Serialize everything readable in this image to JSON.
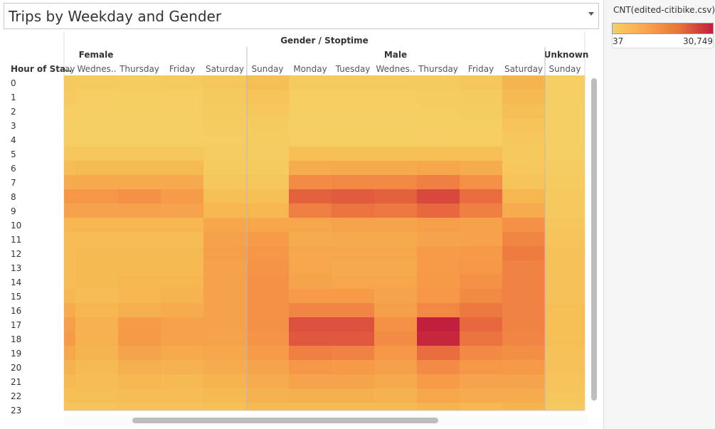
{
  "title": "Trips by Weekday and Gender",
  "legend": {
    "title": "CNT(edited-citibike.csv)",
    "min": "37",
    "max": "30,749"
  },
  "chart_data": {
    "type": "heatmap",
    "column_group_title": "Gender / Stoptime",
    "row_header": "Hour of Sta..",
    "genders": [
      "Female",
      "Male",
      "Unknown"
    ],
    "columns": [
      {
        "gender": "Female",
        "day": "ay"
      },
      {
        "gender": "Female",
        "day": "Wednes.."
      },
      {
        "gender": "Female",
        "day": "Thursday"
      },
      {
        "gender": "Female",
        "day": "Friday"
      },
      {
        "gender": "Female",
        "day": "Saturday"
      },
      {
        "gender": "Male",
        "day": "Sunday"
      },
      {
        "gender": "Male",
        "day": "Monday"
      },
      {
        "gender": "Male",
        "day": "Tuesday"
      },
      {
        "gender": "Male",
        "day": "Wednes.."
      },
      {
        "gender": "Male",
        "day": "Thursday"
      },
      {
        "gender": "Male",
        "day": "Friday"
      },
      {
        "gender": "Male",
        "day": "Saturday"
      },
      {
        "gender": "Unknown",
        "day": "Sunday"
      }
    ],
    "rows": [
      "0",
      "1",
      "2",
      "3",
      "4",
      "5",
      "6",
      "7",
      "8",
      "9",
      "10",
      "11",
      "12",
      "13",
      "14",
      "15",
      "16",
      "17",
      "18",
      "19",
      "20",
      "21",
      "22",
      "23"
    ],
    "color_range": [
      37,
      30749
    ],
    "values": [
      [
        1500,
        1000,
        800,
        1000,
        2000,
        3500,
        1000,
        1000,
        1200,
        1200,
        2000,
        5500,
        600
      ],
      [
        1000,
        600,
        500,
        600,
        1500,
        2500,
        700,
        700,
        700,
        800,
        1200,
        4500,
        400
      ],
      [
        600,
        400,
        400,
        400,
        1200,
        1800,
        400,
        400,
        400,
        500,
        800,
        3500,
        300
      ],
      [
        400,
        300,
        300,
        300,
        800,
        1200,
        300,
        300,
        300,
        300,
        500,
        2500,
        200
      ],
      [
        600,
        400,
        400,
        400,
        600,
        900,
        600,
        500,
        500,
        600,
        700,
        1800,
        200
      ],
      [
        2000,
        2000,
        2000,
        2000,
        800,
        900,
        3500,
        3500,
        3500,
        3500,
        3500,
        1500,
        400
      ],
      [
        4000,
        4500,
        4500,
        4500,
        1200,
        1200,
        7000,
        7500,
        7500,
        8000,
        7000,
        1800,
        800
      ],
      [
        7000,
        7500,
        7500,
        7500,
        2000,
        2000,
        13000,
        13500,
        13500,
        15000,
        12000,
        2500,
        1200
      ],
      [
        11000,
        11000,
        12000,
        10000,
        3500,
        3500,
        20000,
        21000,
        20000,
        24000,
        18000,
        5000,
        1500
      ],
      [
        9000,
        9000,
        9000,
        8500,
        5000,
        5000,
        15000,
        17000,
        16000,
        19000,
        15000,
        7000,
        1500
      ],
      [
        5000,
        5000,
        5000,
        5000,
        8000,
        8000,
        8000,
        8500,
        8500,
        9500,
        9000,
        12000,
        2000
      ],
      [
        4000,
        4000,
        4000,
        4000,
        9000,
        10000,
        7000,
        7500,
        7500,
        8500,
        9000,
        14000,
        2500
      ],
      [
        4000,
        4500,
        4500,
        4500,
        9500,
        11000,
        8000,
        8000,
        8000,
        10000,
        10500,
        15500,
        3000
      ],
      [
        4000,
        4500,
        4500,
        4500,
        9000,
        11500,
        8000,
        7500,
        7500,
        10000,
        11000,
        14500,
        3000
      ],
      [
        4000,
        4500,
        5000,
        5000,
        9000,
        12000,
        8500,
        8000,
        8000,
        10500,
        12000,
        14500,
        3000
      ],
      [
        5000,
        4000,
        5000,
        5500,
        9000,
        12000,
        10000,
        10000,
        8500,
        11000,
        13500,
        14500,
        3000
      ],
      [
        7000,
        5000,
        6500,
        7000,
        9000,
        12000,
        14000,
        14000,
        9500,
        13500,
        16000,
        14500,
        3500
      ],
      [
        9500,
        6000,
        10000,
        9000,
        9000,
        12000,
        22500,
        22500,
        12000,
        30749,
        19000,
        14500,
        3500
      ],
      [
        10000,
        6000,
        10500,
        9000,
        8500,
        11500,
        21500,
        21500,
        13000,
        29500,
        17000,
        14000,
        3500
      ],
      [
        8000,
        5500,
        8500,
        7500,
        8000,
        10000,
        15000,
        14500,
        11000,
        18000,
        13500,
        12500,
        3000
      ],
      [
        6000,
        4500,
        6500,
        6000,
        7000,
        8500,
        11000,
        10500,
        9500,
        13000,
        11000,
        10500,
        3000
      ],
      [
        4500,
        4000,
        5000,
        4500,
        5500,
        7000,
        8500,
        8500,
        7500,
        10000,
        8500,
        8500,
        2500
      ],
      [
        3500,
        3500,
        4000,
        4000,
        4500,
        6000,
        6500,
        6500,
        6000,
        8000,
        7000,
        7000,
        2000
      ],
      [
        2500,
        2500,
        3000,
        3000,
        3500,
        4500,
        4500,
        4500,
        4500,
        5500,
        5000,
        5500,
        1500
      ]
    ]
  }
}
